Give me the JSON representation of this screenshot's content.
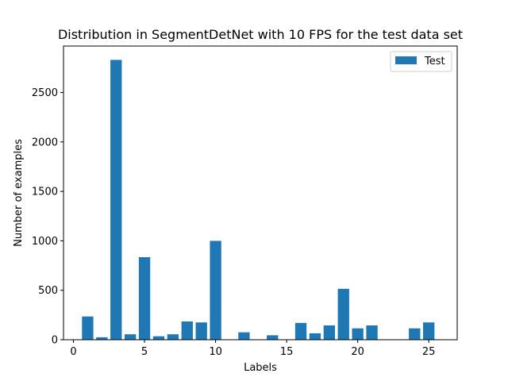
{
  "chart_data": {
    "type": "bar",
    "title": "Distribution in SegmentDetNet with 10 FPS for the test data set",
    "xlabel": "Labels",
    "ylabel": "Number of examples",
    "xlim": [
      -0.7,
      27.0
    ],
    "ylim": [
      0,
      2970
    ],
    "xticks": [
      0,
      5,
      10,
      15,
      20,
      25
    ],
    "yticks": [
      0,
      500,
      1000,
      1500,
      2000,
      2500
    ],
    "grid": false,
    "legend": "top-right",
    "bar_width": 0.8,
    "color": "#1f77b4",
    "series": [
      {
        "name": "Test",
        "x": [
          1,
          2,
          3,
          4,
          5,
          6,
          7,
          8,
          9,
          10,
          12,
          14,
          16,
          17,
          18,
          19,
          20,
          21,
          24,
          25
        ],
        "values": [
          235,
          25,
          2830,
          55,
          835,
          35,
          55,
          185,
          175,
          1000,
          75,
          45,
          170,
          65,
          145,
          515,
          115,
          145,
          115,
          175
        ]
      }
    ]
  }
}
